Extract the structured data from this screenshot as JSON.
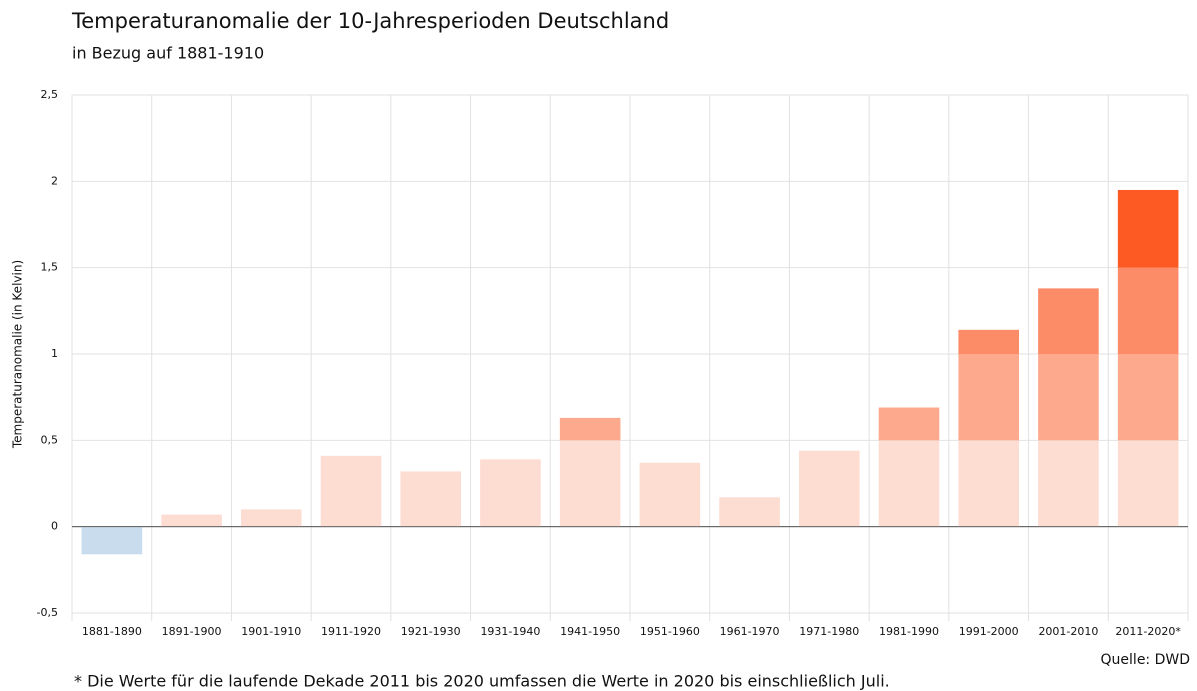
{
  "chart_data": {
    "type": "bar",
    "title": "Temperaturanomalie der 10-Jahresperioden Deutschland",
    "subtitle": "in Bezug auf 1881-1910",
    "y_label": "Temperaturanomalie (in Kelvin)",
    "categories": [
      "1881-1890",
      "1891-1900",
      "1901-1910",
      "1911-1920",
      "1921-1930",
      "1931-1940",
      "1941-1950",
      "1951-1960",
      "1961-1970",
      "1971-1980",
      "1981-1990",
      "1991-2000",
      "2001-2010",
      "2011-2020*"
    ],
    "values": [
      -0.16,
      0.07,
      0.1,
      0.41,
      0.32,
      0.39,
      0.63,
      0.37,
      0.17,
      0.44,
      0.69,
      1.14,
      1.38,
      1.95
    ],
    "ylim": [
      -0.5,
      2.5
    ],
    "yticks": [
      {
        "value": -0.5,
        "label": "-0,5"
      },
      0,
      {
        "value": 0.5,
        "label": "0,5"
      },
      1,
      {
        "value": 1.5,
        "label": "1,5"
      },
      2,
      {
        "value": 2.5,
        "label": "2,5"
      }
    ],
    "band_colors": [
      "#c9dcee",
      "#fddcd2",
      "#fca98e",
      "#fc8c67",
      "#fc5a22",
      "#fc5a22"
    ],
    "grid": true,
    "source": "Quelle: DWD",
    "footnote": "* Die Werte für die laufende Dekade 2011 bis 2020 umfassen die Werte in 2020 bis einschließlich Juli."
  }
}
